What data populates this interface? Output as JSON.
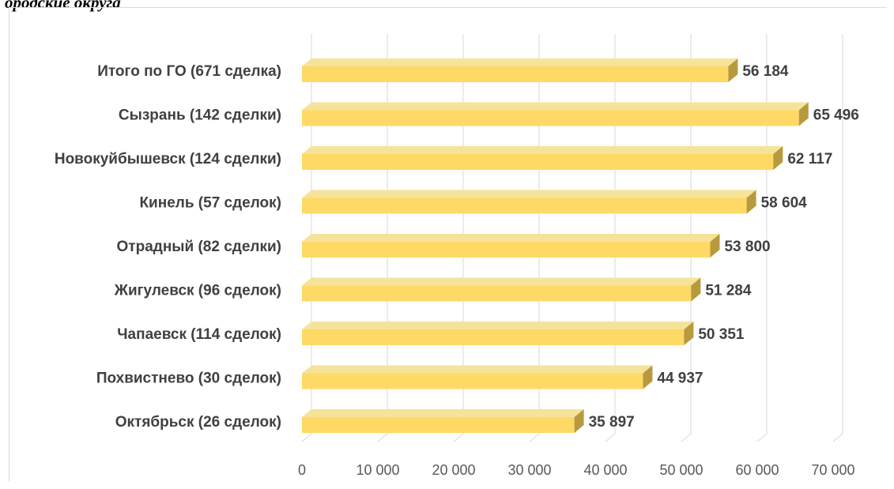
{
  "caption": "ородские округа",
  "colors": {
    "bar_front": "#ffd966",
    "bar_top": "#f6e39a",
    "bar_side": "#b89a3e",
    "gridline": "#d9d9d9",
    "label": "#404040",
    "tick": "#595959"
  },
  "chart_data": {
    "type": "bar",
    "orientation": "horizontal",
    "style": "3d",
    "categories": [
      "Итого по ГО (671 сделка)",
      "Сызрань (142 сделки)",
      "Новокуйбышевск (124 сделки)",
      "Кинель (57 сделок)",
      "Отрадный (82 сделки)",
      "Жигулевск (96 сделок)",
      "Чапаевск (114 сделок)",
      "Похвистнево (30 сделок)",
      "Октябрьск (26 сделок)"
    ],
    "values": [
      56184,
      65496,
      62117,
      58604,
      53800,
      51284,
      50351,
      44937,
      35897
    ],
    "value_labels": [
      "56 184",
      "65 496",
      "62 117",
      "58 604",
      "53 800",
      "51 284",
      "50 351",
      "44 937",
      "35 897"
    ],
    "x_ticks": [
      0,
      10000,
      20000,
      30000,
      40000,
      50000,
      60000,
      70000
    ],
    "x_tick_labels": [
      "0",
      "10 000",
      "20 000",
      "30 000",
      "40 000",
      "50 000",
      "60 000",
      "70 000"
    ],
    "xlim": [
      0,
      70000
    ],
    "grid": true,
    "legend": "none"
  }
}
